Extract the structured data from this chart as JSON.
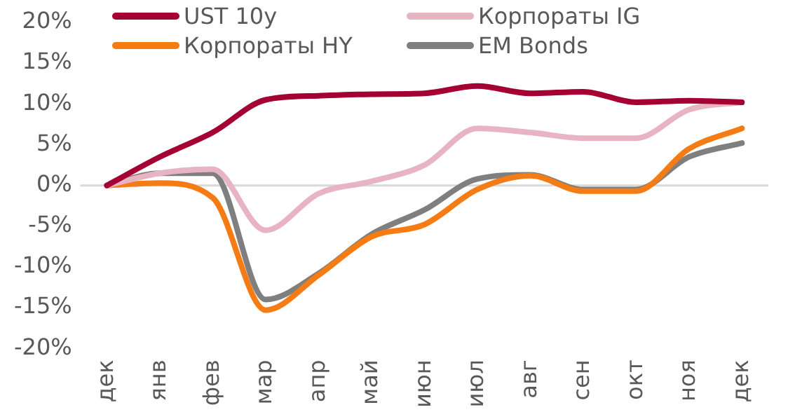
{
  "chart_data": {
    "type": "line",
    "categories": [
      "дек",
      "янв",
      "фев",
      "мар",
      "апр",
      "май",
      "июн",
      "июл",
      "авг",
      "сен",
      "окт",
      "ноя",
      "дек"
    ],
    "series": [
      {
        "name": "UST 10y",
        "color": "#a50034",
        "values": [
          0,
          3.5,
          6.5,
          10.5,
          11,
          11.2,
          11.3,
          12.2,
          11.3,
          11.5,
          10.2,
          10.4,
          10.2
        ]
      },
      {
        "name": "Корпораты IG",
        "color": "#e8b4c4",
        "values": [
          0,
          1.5,
          2,
          -5.5,
          -1,
          0.5,
          2.5,
          7,
          6.5,
          5.8,
          5.8,
          9.3,
          10.2
        ]
      },
      {
        "name": "Корпораты HY",
        "color": "#f57c14",
        "values": [
          0,
          0.3,
          -1.5,
          -15.3,
          -11,
          -6.3,
          -4.8,
          -0.5,
          1.2,
          -0.7,
          -0.7,
          4.5,
          7
        ]
      },
      {
        "name": "EM Bonds",
        "color": "#7f7f7f",
        "values": [
          0,
          1.5,
          1.5,
          -14,
          -10.8,
          -6,
          -3,
          0.8,
          1.3,
          -0.5,
          -0.5,
          3.5,
          5.2
        ]
      }
    ],
    "ylim": [
      -20,
      20
    ],
    "yticks": [
      {
        "value": -20,
        "label": "-20%"
      },
      {
        "value": -15,
        "label": "-15%"
      },
      {
        "value": -10,
        "label": "-10%"
      },
      {
        "value": -5,
        "label": "-5%"
      },
      {
        "value": 0,
        "label": "0%"
      },
      {
        "value": 5,
        "label": "5%"
      },
      {
        "value": 10,
        "label": "10%"
      },
      {
        "value": 15,
        "label": "15%"
      },
      {
        "value": 20,
        "label": "20%"
      }
    ],
    "ref_lines": [
      {
        "axis": "y",
        "value": 0,
        "color": "#d9d9d9"
      }
    ],
    "grid": false,
    "legend": "top",
    "marker": "none",
    "line_style": "solid"
  }
}
